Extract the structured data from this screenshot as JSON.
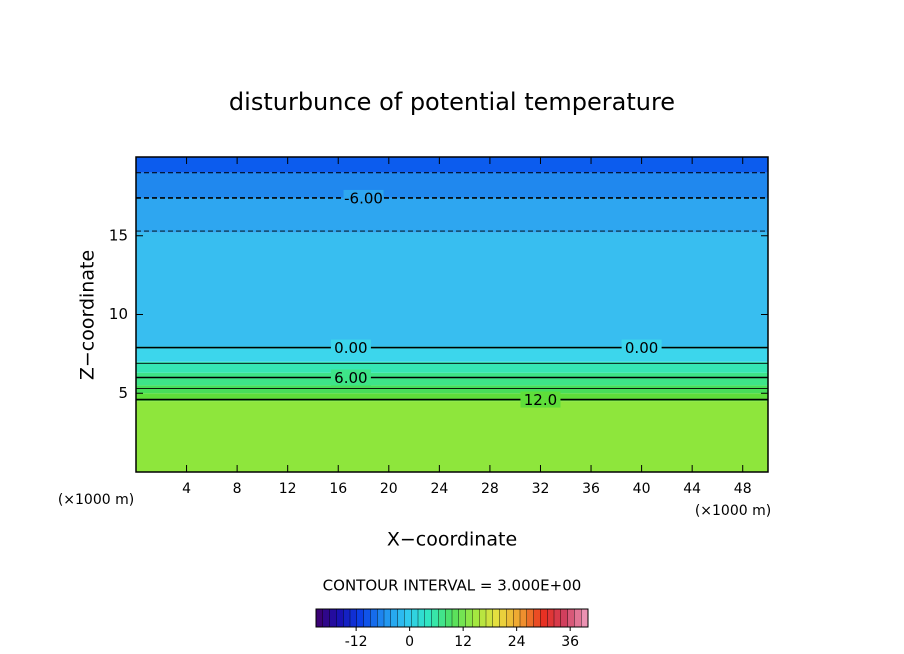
{
  "chart_data": {
    "type": "contour",
    "title": "disturbunce of potential temperature",
    "xlabel": "X−coordinate",
    "ylabel": "Z−coordinate",
    "xunit": "(×1000 m)",
    "yunit": "(×1000 m)",
    "xlim": [
      0,
      50
    ],
    "xticks": [
      4,
      8,
      12,
      16,
      20,
      24,
      28,
      32,
      36,
      40,
      44,
      48
    ],
    "ylim": [
      0,
      20
    ],
    "yticks": [
      5,
      10,
      15
    ],
    "field": [
      {
        "bottom": 0,
        "top": 4.5,
        "value": 15,
        "color": "#8ee63c"
      },
      {
        "bottom": 4.5,
        "top": 5.0,
        "value": 12,
        "color": "#5ede3a"
      },
      {
        "bottom": 5.0,
        "top": 5.5,
        "value": 10.5,
        "color": "#48de5a"
      },
      {
        "bottom": 5.5,
        "top": 6.3,
        "value": 7.5,
        "color": "#3ee488"
      },
      {
        "bottom": 6.3,
        "top": 7.0,
        "value": 4.5,
        "color": "#36e6b4"
      },
      {
        "bottom": 7.0,
        "top": 8.0,
        "value": 1.5,
        "color": "#3cd6ec"
      },
      {
        "bottom": 8.0,
        "top": 15.2,
        "value": -1.5,
        "color": "#38bef0"
      },
      {
        "bottom": 15.2,
        "top": 17.4,
        "value": -4.5,
        "color": "#2ea6f0"
      },
      {
        "bottom": 17.4,
        "top": 19.0,
        "value": -7.5,
        "color": "#2088ee"
      },
      {
        "bottom": 19.0,
        "top": 20,
        "value": -10.5,
        "color": "#0c5cee"
      }
    ],
    "contours": [
      {
        "level": -9,
        "z": 19.0
      },
      {
        "level": -6,
        "z": 17.4,
        "label": "-6.00",
        "label_x": [
          18
        ]
      },
      {
        "level": -3,
        "z": 15.3
      },
      {
        "level": 0,
        "z": 7.9,
        "label": "0.00",
        "label_x": [
          17,
          40
        ]
      },
      {
        "level": 3,
        "z": 6.9
      },
      {
        "level": 6,
        "z": 6.0,
        "label": "6.00",
        "label_x": [
          17
        ]
      },
      {
        "level": 9,
        "z": 5.3
      },
      {
        "level": 12,
        "z": 4.6,
        "label": "12.0",
        "label_x": [
          32
        ]
      }
    ],
    "interval_label": "CONTOUR INTERVAL = 3.000E+00",
    "colorbar": {
      "lim": [
        -21,
        40
      ],
      "ticks": [
        -12,
        0,
        12,
        24,
        36
      ],
      "colors": [
        "#40006a",
        "#1a10b0",
        "#0a40e8",
        "#2090f0",
        "#30c8f0",
        "#30e8c0",
        "#50e060",
        "#a0e840",
        "#e8e040",
        "#f0a030",
        "#e83020",
        "#d04060",
        "#f0a0c0"
      ]
    }
  }
}
